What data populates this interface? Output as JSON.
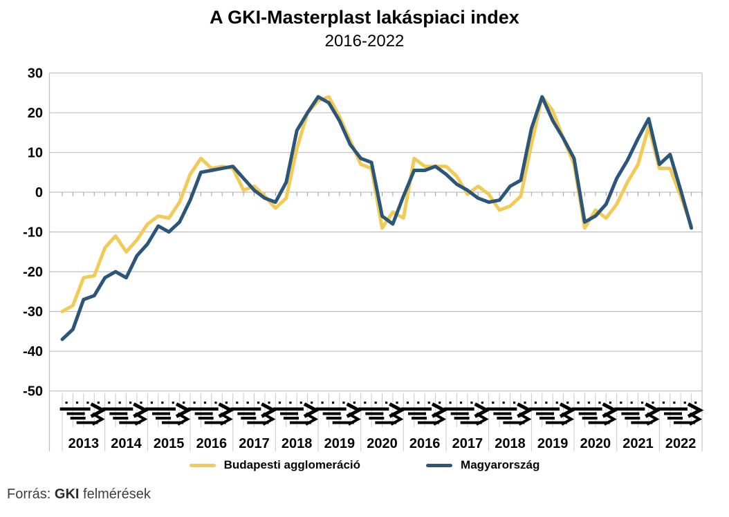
{
  "title": "A GKI-Masterplast lakáspiaci index",
  "subtitle": "2016-2022",
  "source": {
    "prefix": "Forrás: ",
    "bold": "GKI",
    "suffix": " felmérések"
  },
  "legend": [
    {
      "label": "Budapesti agglomeráció",
      "color": "#F2CB57"
    },
    {
      "label": "Magyarország",
      "color": "#2C5679"
    }
  ],
  "colors": {
    "budapest_line": "#F2CB57",
    "hungary_line": "#2C5679",
    "gridline": "#BFBFBF",
    "axis_band": "#C9C9C9",
    "axis_marks": "#000000",
    "text": "#000000"
  },
  "chart_data": {
    "type": "line",
    "title": "A GKI-Masterplast lakáspiaci index",
    "subtitle": "2016-2022",
    "x_year_labels": [
      "2013",
      "2014",
      "2015",
      "2016",
      "2017",
      "2018",
      "2019",
      "2020",
      "2016",
      "2017",
      "2018",
      "2019",
      "2020",
      "2021",
      "2022"
    ],
    "points_per_year": 4,
    "ylim": [
      -50,
      30
    ],
    "y_ticks": [
      30,
      20,
      10,
      0,
      -10,
      -20,
      -30,
      -40,
      -50
    ],
    "grid": true,
    "legend_position": "bottom",
    "series": [
      {
        "name": "Budapesti agglomeráció",
        "color": "#F2CB57",
        "values": [
          -30,
          -28.5,
          -21.5,
          -21,
          -14,
          -11,
          -15,
          -12,
          -8,
          -6,
          -6.5,
          -2.5,
          4.5,
          8.5,
          6,
          6.5,
          6,
          0.5,
          1.5,
          -1,
          -4,
          -1.5,
          11,
          20,
          23,
          24,
          19,
          13,
          7,
          6,
          -9,
          -5,
          -6.5,
          8.5,
          6.5,
          6.5,
          6.5,
          4,
          -0.5,
          1.5,
          -0.5,
          -4.5,
          -3.5,
          -1,
          12,
          24,
          20.5,
          13.5,
          7,
          -9,
          -4.5,
          -6.5,
          -3,
          2.5,
          7,
          16.5,
          6,
          6,
          -1,
          -8.5
        ]
      },
      {
        "name": "Magyarország",
        "color": "#2C5679",
        "values": [
          -37,
          -34.5,
          -27,
          -26,
          -21.5,
          -20,
          -21.5,
          -16,
          -13,
          -8.5,
          -10,
          -7.5,
          -2,
          5,
          5.5,
          6,
          6.5,
          3.5,
          0.5,
          -1.5,
          -2.5,
          2.5,
          15.5,
          20,
          24,
          22.5,
          18,
          12,
          8.5,
          7.5,
          -6,
          -8,
          -1,
          5.5,
          5.5,
          6.5,
          4.5,
          2,
          0.5,
          -1.5,
          -2.5,
          -2,
          1.5,
          3,
          16,
          24,
          18,
          13.5,
          8.5,
          -7.5,
          -6,
          -3,
          3.5,
          8,
          13.5,
          18.5,
          7,
          9.5,
          0.5,
          -9
        ]
      }
    ]
  }
}
